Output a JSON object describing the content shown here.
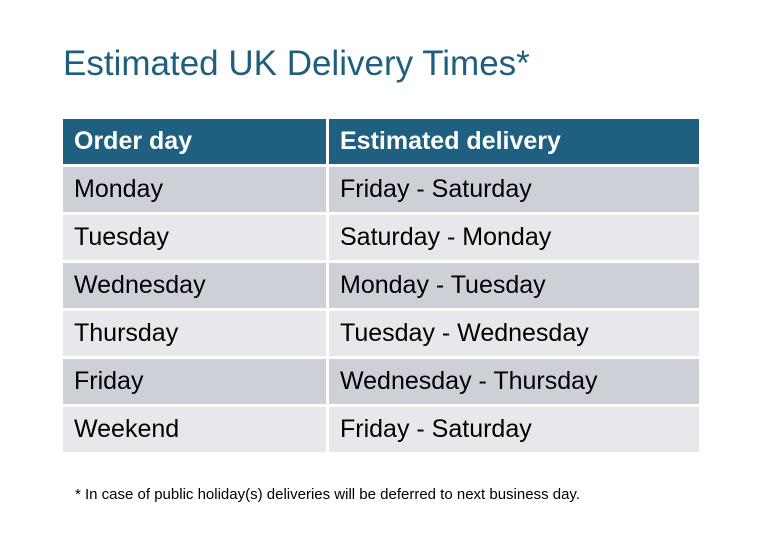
{
  "title": "Estimated UK Delivery Times*",
  "table": {
    "headers": [
      "Order day",
      "Estimated delivery"
    ],
    "rows": [
      [
        "Monday",
        "Friday - Saturday"
      ],
      [
        "Tuesday",
        "Saturday - Monday"
      ],
      [
        "Wednesday",
        "Monday - Tuesday"
      ],
      [
        "Thursday",
        "Tuesday - Wednesday"
      ],
      [
        "Friday",
        "Wednesday - Thursday"
      ],
      [
        "Weekend",
        "Friday - Saturday"
      ]
    ]
  },
  "footnote": "* In case of public holiday(s) deliveries will be deferred to next business day.",
  "colors": {
    "header": "#1f6080",
    "title": "#1f5f7d",
    "row_dark": "#cdd1d7",
    "row_light": "#e6e8eb"
  }
}
